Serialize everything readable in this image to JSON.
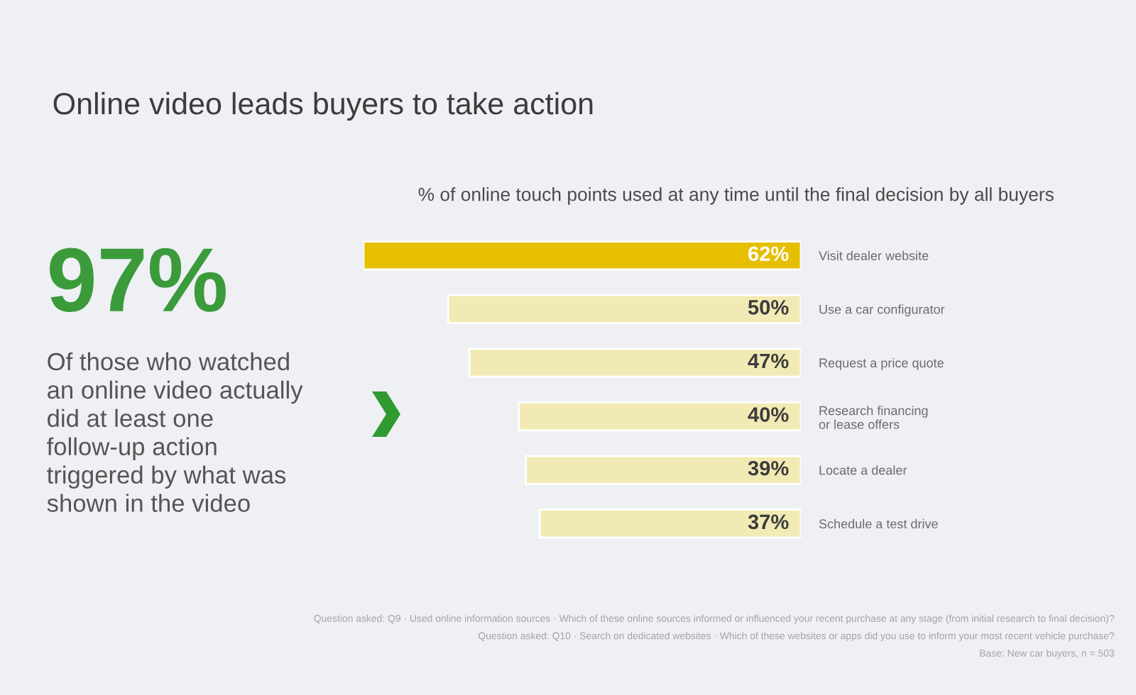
{
  "chart_data": {
    "type": "bar",
    "orientation": "horizontal",
    "title": "Online video leads buyers to take action",
    "subtitle": "% of online touch points used at any time until the final decision by all buyers",
    "categories": [
      "Visit dealer website",
      "Use a car configurator",
      "Request a price quote",
      "Research financing\nor lease offers",
      "Locate a dealer",
      "Schedule a test drive"
    ],
    "values": [
      62,
      50,
      47,
      40,
      39,
      37
    ],
    "colors": [
      "#e6bf00",
      "#f2eab4",
      "#f2eab4",
      "#f2eab4",
      "#f2eab4",
      "#f2eab4"
    ],
    "value_labels": [
      "62%",
      "50%",
      "47%",
      "40%",
      "39%",
      "37%"
    ],
    "xlim": [
      62,
      0
    ],
    "tick_labels": "y",
    "annotations": [
      "97%",
      "Of those who watched\nan online video actually\ndid at least one\nfollow-up action\ntriggered by what was\nshown in the video",
      "Question asked: Q9 · Used online information sources · Which of these online sources informed or influenced your recent purchase at any stage (from initial research to final decision)?",
      "Question asked: Q10 · Search on dedicated websites · Which of these websites or apps did you use to inform your most recent vehicle purchase?",
      "Base: New car buyers, n = 503"
    ]
  }
}
